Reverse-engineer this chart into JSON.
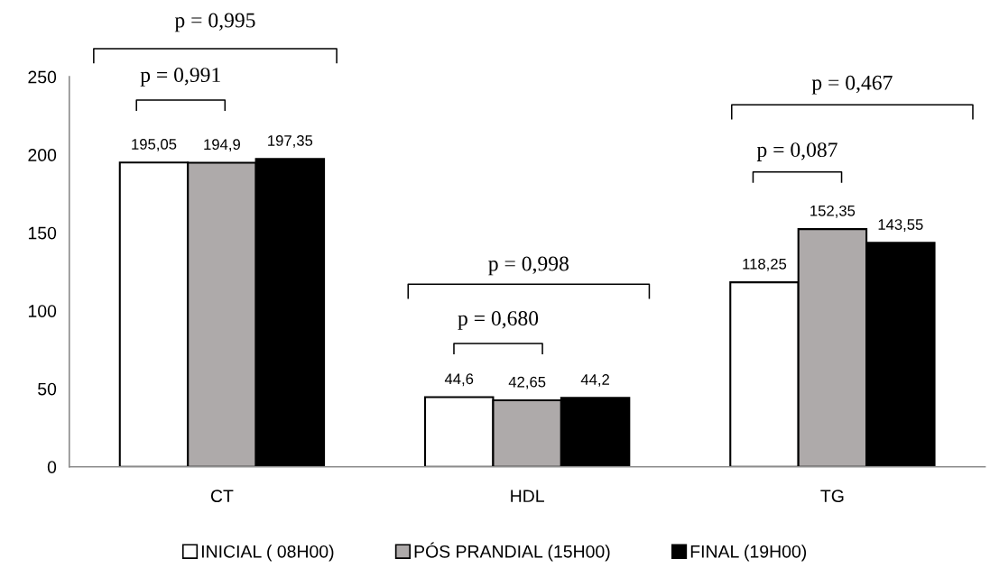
{
  "chart_data": {
    "type": "bar",
    "categories": [
      "CT",
      "HDL",
      "TG"
    ],
    "series": [
      {
        "name": "INICIAL ( 08H00)",
        "color": "#ffffff",
        "values": [
          195.05,
          44.6,
          118.25
        ],
        "value_labels": [
          "195,05",
          "44,6",
          "118,25"
        ]
      },
      {
        "name": "PÓS PRANDIAL (15H00)",
        "color": "#aeaaaa",
        "values": [
          194.9,
          42.65,
          152.35
        ],
        "value_labels": [
          "194,9",
          "42,65",
          "152,35"
        ]
      },
      {
        "name": "FINAL (19H00)",
        "color": "#000000",
        "values": [
          197.35,
          44.2,
          143.55
        ],
        "value_labels": [
          "197,35",
          "44,2",
          "143,55"
        ]
      }
    ],
    "ylim": [
      0,
      250
    ],
    "yticks": [
      0,
      50,
      100,
      150,
      200,
      250
    ],
    "grid": false,
    "legend": "bottom",
    "annotations": [
      "p = 0,995",
      "p = 0,991",
      "p = 0,998",
      "p = 0,680",
      "p = 0,467",
      "p = 0,087"
    ]
  }
}
